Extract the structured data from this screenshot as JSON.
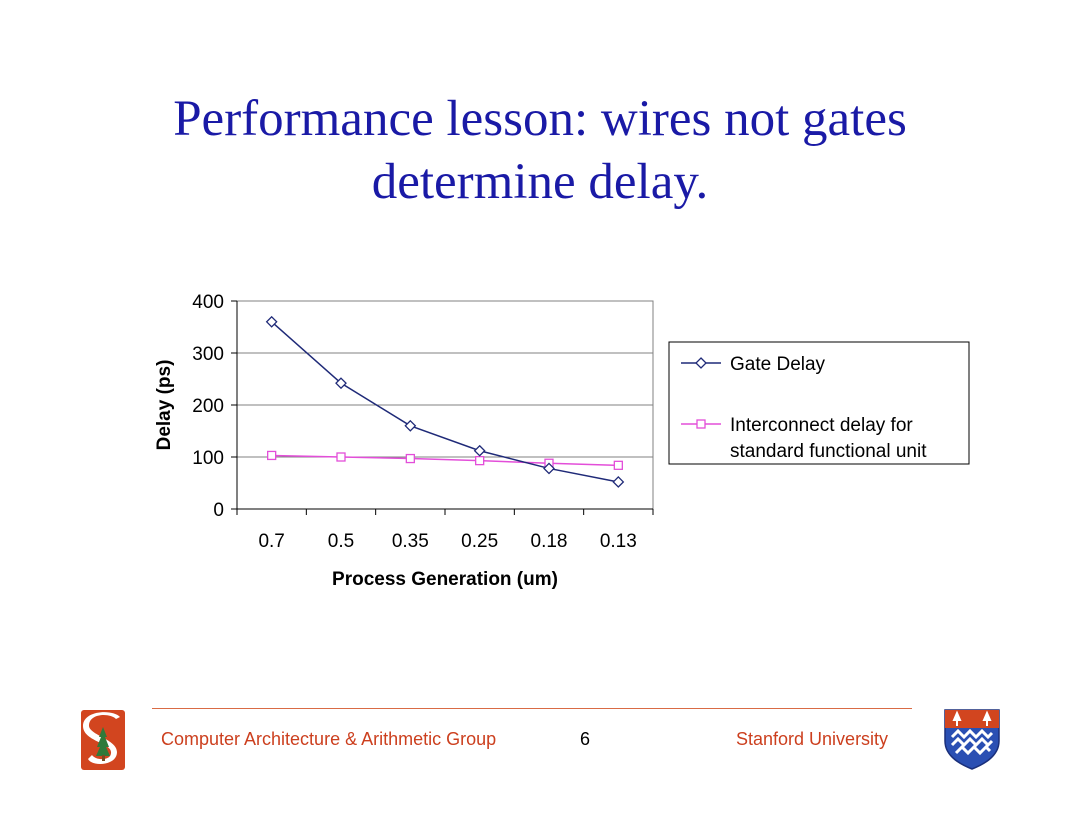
{
  "slide": {
    "title_line1": "Performance lesson: wires not gates",
    "title_line2": "determine delay.",
    "footer_left": "Computer Architecture & Arithmetic Group",
    "page_number": "6",
    "footer_right": "Stanford University"
  },
  "icons": {
    "left_logo": "stanford-s-logo-icon",
    "right_logo": "shield-crest-icon"
  },
  "colors": {
    "title": "#1a1aa6",
    "footer_text": "#cc3f1e",
    "footer_rule": "#d96b45",
    "gate_series": "#1f2a78",
    "interconnect_series": "#e34ed9"
  },
  "chart_data": {
    "type": "line",
    "categories": [
      "0.7",
      "0.5",
      "0.35",
      "0.25",
      "0.18",
      "0.13"
    ],
    "series": [
      {
        "name": "Gate Delay",
        "values": [
          360,
          242,
          160,
          112,
          78,
          52
        ],
        "color": "#1f2a78",
        "marker": "diamond"
      },
      {
        "name": "Interconnect delay for standard functional unit",
        "name_lines": [
          "Interconnect delay for",
          "standard functional unit"
        ],
        "values": [
          103,
          100,
          97,
          93,
          88,
          84
        ],
        "color": "#e34ed9",
        "marker": "square"
      }
    ],
    "xlabel": "Process Generation (um)",
    "ylabel": "Delay (ps)",
    "ylim": [
      0,
      400
    ],
    "yticks": [
      0,
      100,
      200,
      300,
      400
    ],
    "grid": true,
    "legend_position": "right"
  }
}
